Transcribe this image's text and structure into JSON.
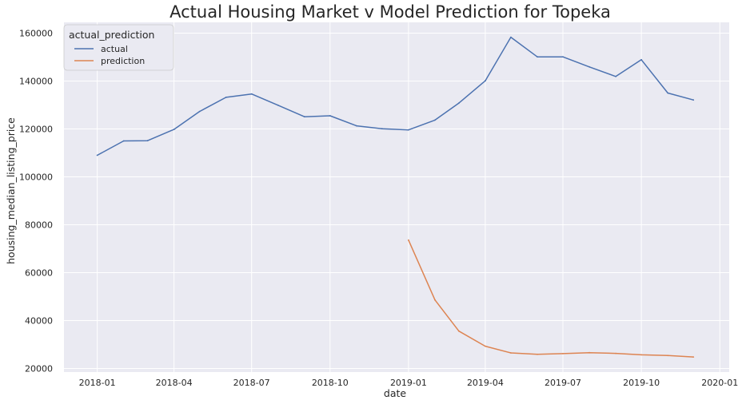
{
  "chart_data": {
    "type": "line",
    "title": "Actual Housing Market v Model Prediction for Topeka",
    "xlabel": "date",
    "ylabel": "housing_median_listing_price",
    "xlim": [
      "2017-11-23",
      "2020-01-12"
    ],
    "ylim": [
      18500,
      164500
    ],
    "x_ticks": [
      "2018-01",
      "2018-04",
      "2018-07",
      "2018-10",
      "2019-01",
      "2019-04",
      "2019-07",
      "2019-10",
      "2020-01"
    ],
    "y_ticks": [
      20000,
      40000,
      60000,
      80000,
      100000,
      120000,
      140000,
      160000
    ],
    "grid": true,
    "legend": {
      "title": "actual_prediction",
      "placement": "top-left"
    },
    "series": [
      {
        "name": "actual",
        "color": "#4c72b0",
        "x": [
          "2018-01-01",
          "2018-02-01",
          "2018-03-01",
          "2018-04-01",
          "2018-05-01",
          "2018-06-01",
          "2018-07-01",
          "2018-08-01",
          "2018-09-01",
          "2018-10-01",
          "2018-11-01",
          "2018-12-01",
          "2019-01-01",
          "2019-02-01",
          "2019-03-01",
          "2019-04-01",
          "2019-05-01",
          "2019-06-01",
          "2019-07-01",
          "2019-08-01",
          "2019-09-01",
          "2019-10-01",
          "2019-11-01",
          "2019-12-01"
        ],
        "y": [
          109000,
          115000,
          115100,
          119800,
          127300,
          133200,
          134600,
          129900,
          125100,
          125500,
          121300,
          120100,
          119600,
          123700,
          130800,
          140100,
          158300,
          150100,
          150100,
          145900,
          141900,
          148900,
          135000,
          132100
        ]
      },
      {
        "name": "prediction",
        "color": "#dd8452",
        "x": [
          "2019-01-01",
          "2019-02-01",
          "2019-03-01",
          "2019-04-01",
          "2019-05-01",
          "2019-06-01",
          "2019-07-01",
          "2019-08-01",
          "2019-09-01",
          "2019-10-01",
          "2019-11-01",
          "2019-12-01"
        ],
        "y": [
          73600,
          48600,
          35600,
          29300,
          26500,
          25900,
          26200,
          26600,
          26300,
          25700,
          25400,
          24800
        ]
      }
    ]
  }
}
